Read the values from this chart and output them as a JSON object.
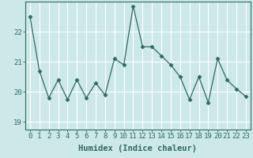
{
  "title": "",
  "xlabel": "Humidex (Indice chaleur)",
  "x": [
    0,
    1,
    2,
    3,
    4,
    5,
    6,
    7,
    8,
    9,
    10,
    11,
    12,
    13,
    14,
    15,
    16,
    17,
    18,
    19,
    20,
    21,
    22,
    23
  ],
  "y": [
    22.5,
    20.7,
    19.8,
    20.4,
    19.75,
    20.4,
    19.8,
    20.3,
    19.9,
    21.1,
    20.9,
    22.85,
    21.5,
    21.5,
    21.2,
    20.9,
    20.5,
    19.75,
    20.5,
    19.65,
    21.1,
    20.4,
    20.1,
    19.85
  ],
  "line_color": "#2e6b5e",
  "marker": "D",
  "marker_size": 2.5,
  "bg_color": "#cce8e8",
  "grid_color": "#ffffff",
  "axis_color": "#2e6b5e",
  "ylim": [
    18.75,
    23.0
  ],
  "yticks": [
    19,
    20,
    21,
    22
  ],
  "xticks": [
    0,
    1,
    2,
    3,
    4,
    5,
    6,
    7,
    8,
    9,
    10,
    11,
    12,
    13,
    14,
    15,
    16,
    17,
    18,
    19,
    20,
    21,
    22,
    23
  ],
  "tick_fontsize": 6.5,
  "label_fontsize": 7.5
}
